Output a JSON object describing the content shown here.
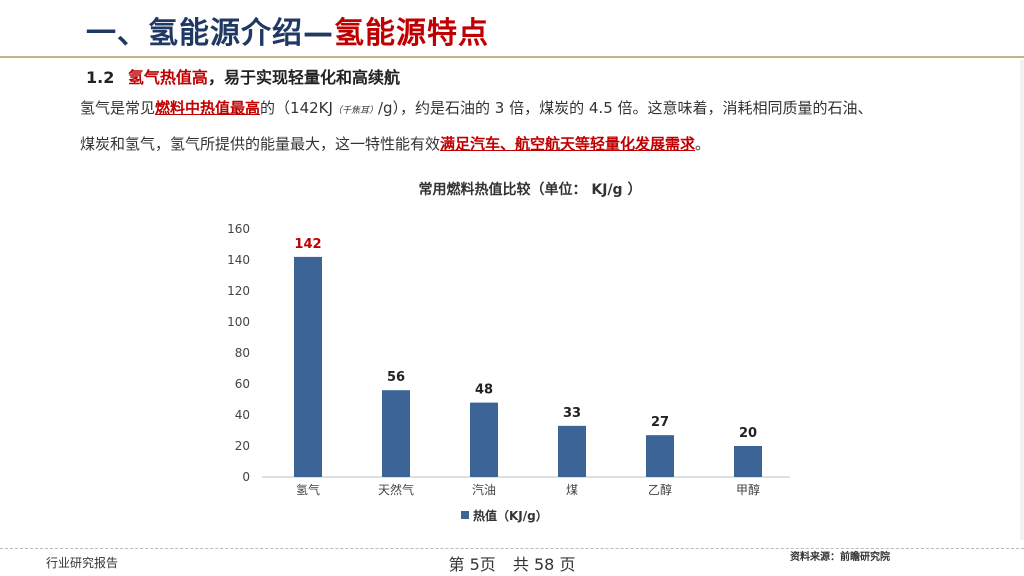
{
  "header": {
    "title_part1": "一、氢能源介绍—",
    "title_part2": "氢能源特点"
  },
  "subtitle": {
    "number": "1.2",
    "highlight": "氢气热值高",
    "rest": "，易于实现轻量化和高续航"
  },
  "paragraph": {
    "s1": "氢气是常见",
    "s2": "燃料中热值最高",
    "s3": "的（142KJ",
    "s4": "（千焦耳）",
    "s5": "/g），约是石油的 3 倍，煤炭的 4.5 倍。这意味着，消耗相同质量的石油、",
    "s6": "煤炭和氢气，氢气所提供的能量最大，这一特性能有效",
    "s7": "满足汽车、航空航天等轻量化发展需求",
    "s8": "。"
  },
  "chart_data": {
    "type": "bar",
    "title": "常用燃料热值比较（单位： KJ/g ）",
    "categories": [
      "氢气",
      "天然气",
      "汽油",
      "煤",
      "乙醇",
      "甲醇"
    ],
    "series": [
      {
        "name": "热值（KJ/g）",
        "values": [
          142,
          56,
          48,
          33,
          27,
          20
        ]
      }
    ],
    "ylim": [
      0,
      160
    ],
    "yticks": [
      "0",
      "20",
      "40",
      "60",
      "80",
      "100",
      "120",
      "140",
      "160"
    ],
    "bar_color": "#3c6496",
    "highlight_label_color": "#c00000",
    "legend_position": "bottom",
    "grid": false
  },
  "footer": {
    "left": "行业研究报告",
    "page": "第 5页",
    "total": "共 58 页",
    "source": "资料来源：前瞻研究院"
  }
}
